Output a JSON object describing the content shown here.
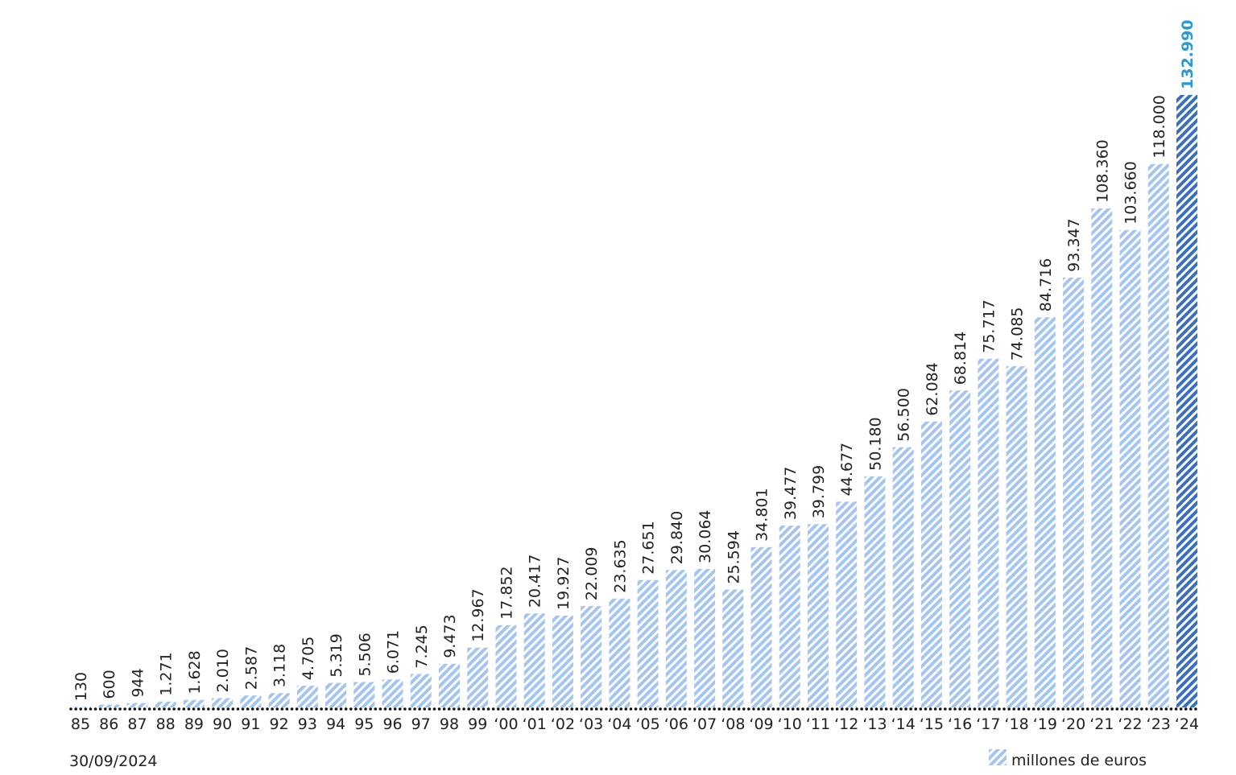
{
  "chart_data": {
    "type": "bar",
    "categories": [
      "85",
      "86",
      "87",
      "88",
      "89",
      "90",
      "91",
      "92",
      "93",
      "94",
      "95",
      "96",
      "97",
      "98",
      "99",
      "‘00",
      "‘01",
      "‘02",
      "‘03",
      "‘04",
      "‘05",
      "‘06",
      "‘07",
      "‘08",
      "‘09",
      "‘10",
      "‘11",
      "‘12",
      "‘13",
      "‘14",
      "‘15",
      "‘16",
      "‘17",
      "‘18",
      "‘19",
      "‘20",
      "‘21",
      "‘22",
      "‘23",
      "‘24"
    ],
    "series": [
      {
        "name": "millones de euros",
        "values": [
          130,
          600,
          944,
          1271,
          1628,
          2010,
          2587,
          3118,
          4705,
          5319,
          5506,
          6071,
          7245,
          9473,
          12967,
          17852,
          20417,
          19927,
          22009,
          23635,
          27651,
          29840,
          30064,
          25594,
          34801,
          39477,
          39799,
          44677,
          50180,
          56500,
          62084,
          68814,
          75717,
          74085,
          84716,
          93347,
          108360,
          103660,
          118000,
          132990
        ],
        "value_labels": [
          "130",
          "600",
          "944",
          "1.271",
          "1.628",
          "2.010",
          "2.587",
          "3.118",
          "4.705",
          "5.319",
          "5.506",
          "6.071",
          "7.245",
          "9.473",
          "12.967",
          "17.852",
          "20.417",
          "19.927",
          "22.009",
          "23.635",
          "27.651",
          "29.840",
          "30.064",
          "25.594",
          "34.801",
          "39.477",
          "39.799",
          "44.677",
          "50.180",
          "56.500",
          "62.084",
          "68.814",
          "75.717",
          "74.085",
          "84.716",
          "93.347",
          "108.360",
          "103.660",
          "118.000",
          "132.990"
        ],
        "colors": [
          "#a3c5ef",
          "#a3c5ef",
          "#a3c5ef",
          "#a3c5ef",
          "#a3c5ef",
          "#a3c5ef",
          "#a3c5ef",
          "#a3c5ef",
          "#a3c5ef",
          "#a3c5ef",
          "#a3c5ef",
          "#a3c5ef",
          "#a3c5ef",
          "#a3c5ef",
          "#a3c5ef",
          "#a3c5ef",
          "#a3c5ef",
          "#a3c5ef",
          "#a3c5ef",
          "#a3c5ef",
          "#a3c5ef",
          "#a3c5ef",
          "#a3c5ef",
          "#a3c5ef",
          "#a3c5ef",
          "#a3c5ef",
          "#a3c5ef",
          "#a3c5ef",
          "#a3c5ef",
          "#a3c5ef",
          "#a3c5ef",
          "#a3c5ef",
          "#a3c5ef",
          "#a3c5ef",
          "#a3c5ef",
          "#a3c5ef",
          "#a3c5ef",
          "#a3c5ef",
          "#a3c5ef",
          "#3a6fbf"
        ],
        "label_colors": [
          "#222222",
          "#222222",
          "#222222",
          "#222222",
          "#222222",
          "#222222",
          "#222222",
          "#222222",
          "#222222",
          "#222222",
          "#222222",
          "#222222",
          "#222222",
          "#222222",
          "#222222",
          "#222222",
          "#222222",
          "#222222",
          "#222222",
          "#222222",
          "#222222",
          "#222222",
          "#222222",
          "#222222",
          "#222222",
          "#222222",
          "#222222",
          "#222222",
          "#222222",
          "#222222",
          "#222222",
          "#222222",
          "#222222",
          "#222222",
          "#222222",
          "#222222",
          "#222222",
          "#222222",
          "#222222",
          "#2a9ad6"
        ]
      }
    ],
    "note": "30/09/2024"
  }
}
